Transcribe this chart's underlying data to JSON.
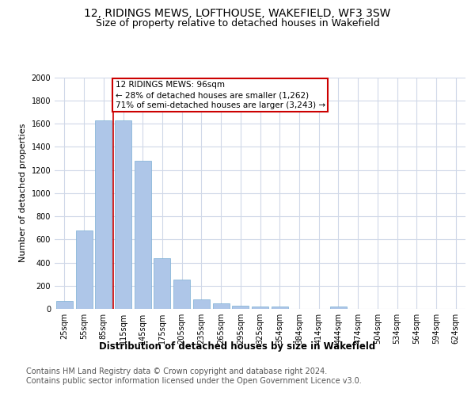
{
  "title": "12, RIDINGS MEWS, LOFTHOUSE, WAKEFIELD, WF3 3SW",
  "subtitle": "Size of property relative to detached houses in Wakefield",
  "xlabel": "Distribution of detached houses by size in Wakefield",
  "ylabel": "Number of detached properties",
  "footer_line1": "Contains HM Land Registry data © Crown copyright and database right 2024.",
  "footer_line2": "Contains public sector information licensed under the Open Government Licence v3.0.",
  "bar_labels": [
    "25sqm",
    "55sqm",
    "85sqm",
    "115sqm",
    "145sqm",
    "175sqm",
    "205sqm",
    "235sqm",
    "265sqm",
    "295sqm",
    "325sqm",
    "354sqm",
    "384sqm",
    "414sqm",
    "444sqm",
    "474sqm",
    "504sqm",
    "534sqm",
    "564sqm",
    "594sqm",
    "624sqm"
  ],
  "bar_values": [
    65,
    680,
    1630,
    1630,
    1280,
    440,
    250,
    85,
    45,
    30,
    20,
    20,
    0,
    0,
    20,
    0,
    0,
    0,
    0,
    0,
    0
  ],
  "bar_color": "#aec6e8",
  "bar_edge_color": "#7bafd4",
  "vline_color": "#cc0000",
  "annotation_text": "12 RIDINGS MEWS: 96sqm\n← 28% of detached houses are smaller (1,262)\n71% of semi-detached houses are larger (3,243) →",
  "annotation_box_color": "#cc0000",
  "ylim": [
    0,
    2000
  ],
  "yticks": [
    0,
    200,
    400,
    600,
    800,
    1000,
    1200,
    1400,
    1600,
    1800,
    2000
  ],
  "background_color": "#ffffff",
  "grid_color": "#d0d8e8",
  "title_fontsize": 10,
  "subtitle_fontsize": 9,
  "axis_label_fontsize": 8.5,
  "tick_fontsize": 7,
  "footer_fontsize": 7,
  "ylabel_fontsize": 8
}
